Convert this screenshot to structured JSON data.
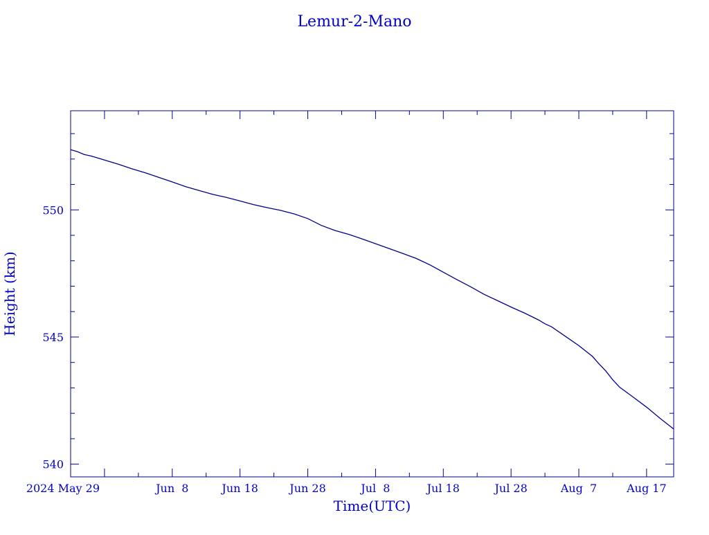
{
  "chart_data": {
    "type": "line",
    "title": "Lemur-2-Mano",
    "xlabel": "Time(UTC)",
    "ylabel": "Height (km)",
    "xlim": [
      "2024-05-24",
      "2024-08-21"
    ],
    "ylim": [
      539.5,
      553.9
    ],
    "x_tick_labels": [
      {
        "date": "2024-05-29",
        "label": "2024 May 29"
      },
      {
        "date": "2024-06-08",
        "label": "Jun  8"
      },
      {
        "date": "2024-06-18",
        "label": "Jun 18"
      },
      {
        "date": "2024-06-28",
        "label": "Jun 28"
      },
      {
        "date": "2024-07-08",
        "label": "Jul  8"
      },
      {
        "date": "2024-07-18",
        "label": "Jul 18"
      },
      {
        "date": "2024-07-28",
        "label": "Jul 28"
      },
      {
        "date": "2024-08-07",
        "label": "Aug  7"
      },
      {
        "date": "2024-08-17",
        "label": "Aug 17"
      }
    ],
    "y_tick_labels": [
      {
        "value": 540,
        "label": "540"
      },
      {
        "value": 545,
        "label": "545"
      },
      {
        "value": 550,
        "label": "550"
      }
    ],
    "grid": false,
    "legend": "none",
    "color": "#00008b",
    "series": [
      {
        "x": [
          "2024-05-24",
          "2024-05-25",
          "2024-05-26",
          "2024-05-27",
          "2024-05-28",
          "2024-05-29",
          "2024-05-31",
          "2024-06-02",
          "2024-06-04",
          "2024-06-06",
          "2024-06-08",
          "2024-06-10",
          "2024-06-12",
          "2024-06-14",
          "2024-06-16",
          "2024-06-18",
          "2024-06-20",
          "2024-06-22",
          "2024-06-24",
          "2024-06-26",
          "2024-06-28",
          "2024-06-30",
          "2024-07-02",
          "2024-07-04",
          "2024-07-06",
          "2024-07-08",
          "2024-07-10",
          "2024-07-12",
          "2024-07-14",
          "2024-07-16",
          "2024-07-18",
          "2024-07-20",
          "2024-07-22",
          "2024-07-24",
          "2024-07-26",
          "2024-07-28",
          "2024-07-30",
          "2024-08-01",
          "2024-08-02",
          "2024-08-03",
          "2024-08-05",
          "2024-08-07",
          "2024-08-09",
          "2024-08-10",
          "2024-08-11",
          "2024-08-12",
          "2024-08-13",
          "2024-08-15",
          "2024-08-17",
          "2024-08-19",
          "2024-08-21"
        ],
        "y": [
          552.37,
          552.29,
          552.18,
          552.12,
          552.04,
          551.96,
          551.8,
          551.62,
          551.46,
          551.28,
          551.1,
          550.91,
          550.76,
          550.61,
          550.49,
          550.35,
          550.21,
          550.09,
          549.98,
          549.84,
          549.66,
          549.39,
          549.19,
          549.04,
          548.86,
          548.67,
          548.48,
          548.29,
          548.09,
          547.84,
          547.55,
          547.26,
          546.98,
          546.68,
          546.43,
          546.18,
          545.94,
          545.68,
          545.52,
          545.4,
          545.03,
          544.66,
          544.24,
          543.94,
          543.66,
          543.32,
          543.03,
          542.64,
          542.24,
          541.8,
          541.38
        ]
      }
    ]
  }
}
